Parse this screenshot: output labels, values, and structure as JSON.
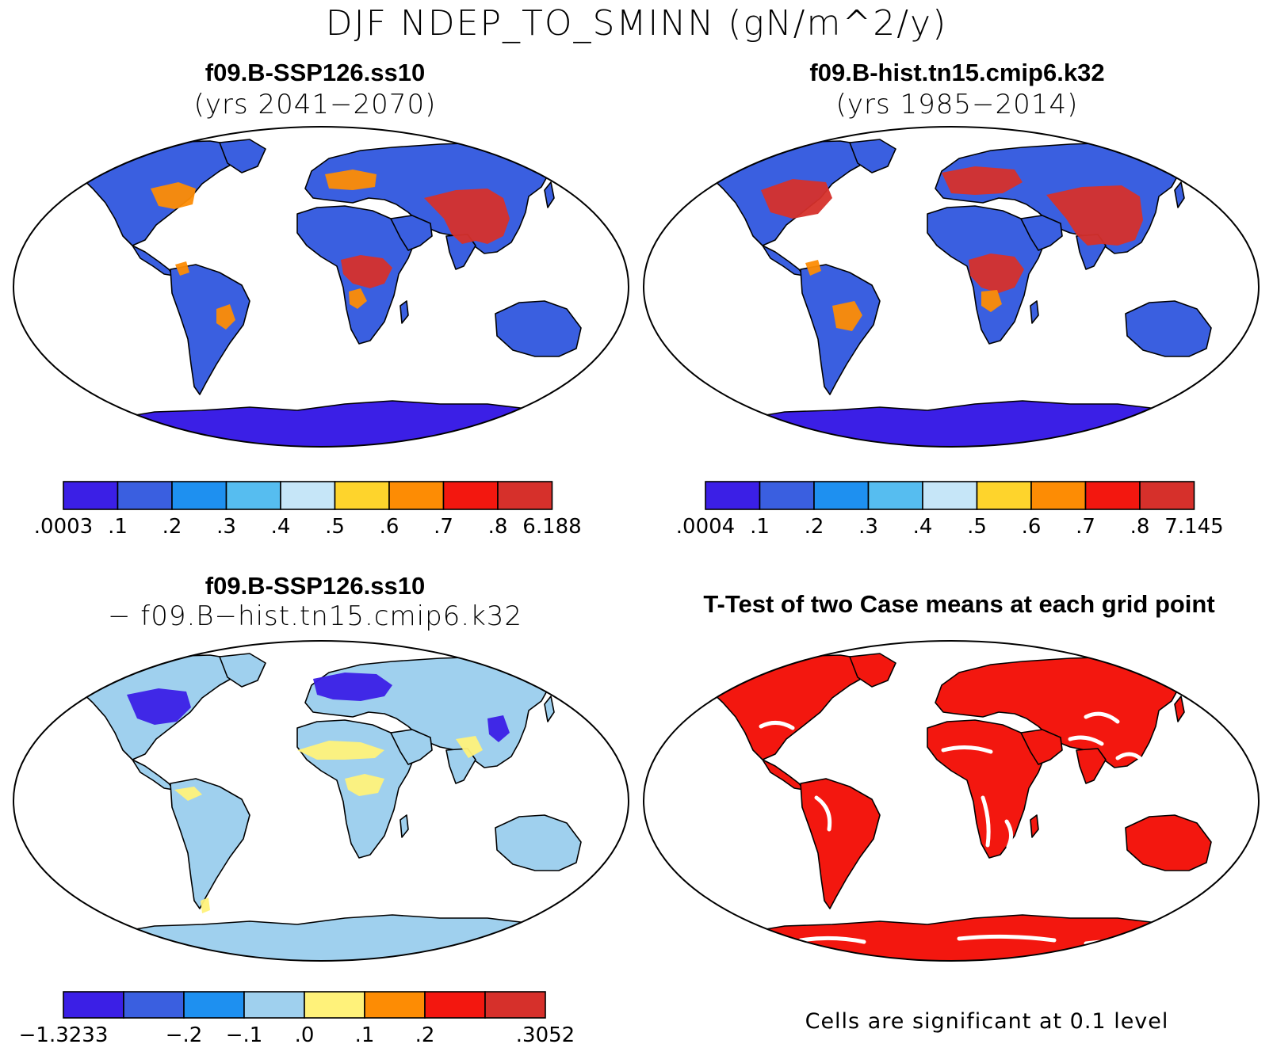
{
  "main_title": "DJF NDEP_TO_SMINN (gN/m^2/y)",
  "panels": [
    {
      "id": "top-left",
      "title_line1": "f09.B-SSP126.ss10",
      "title_line2": "(yrs 2041−2070)",
      "colors": [
        "#3b1fe6",
        "#3a5fe0",
        "#1e90f0",
        "#56bdf0",
        "#c6e6f8",
        "#fed42c",
        "#fd8c04",
        "#f3170f",
        "#d6302b"
      ],
      "labels": [
        ".0003",
        ".1",
        ".2",
        ".3",
        ".4",
        ".5",
        ".6",
        ".7",
        ".8",
        "6.188"
      ],
      "land_color": "#3a5fe0",
      "antarctica_color": "#3b1fe6",
      "hotspot_color": "#d6302b",
      "warm_color": "#fd8c04"
    },
    {
      "id": "top-right",
      "title_line1": "f09.B-hist.tn15.cmip6.k32",
      "title_line2": "(yrs 1985−2014)",
      "colors": [
        "#3b1fe6",
        "#3a5fe0",
        "#1e90f0",
        "#56bdf0",
        "#c6e6f8",
        "#fed42c",
        "#fd8c04",
        "#f3170f",
        "#d6302b"
      ],
      "labels": [
        ".0004",
        ".1",
        ".2",
        ".3",
        ".4",
        ".5",
        ".6",
        ".7",
        ".8",
        "7.145"
      ],
      "land_color": "#3a5fe0",
      "antarctica_color": "#3b1fe6",
      "hotspot_color": "#d6302b",
      "warm_color": "#fd8c04"
    },
    {
      "id": "bottom-left",
      "title_line1": "f09.B-SSP126.ss10",
      "title_line2": "− f09.B−hist.tn15.cmip6.k32",
      "colors": [
        "#3b1fe6",
        "#3a5fe0",
        "#1e90f0",
        "#9fd0ee",
        "#fff27a",
        "#fd8c04",
        "#f3170f",
        "#d6302b"
      ],
      "labels": [
        "−1.3233",
        "",
        "−.2",
        "−.1",
        ".0",
        ".1",
        ".2",
        "",
        ".3052"
      ],
      "land_color": "#9fd0ee",
      "antarctica_color": "#9fd0ee",
      "hotspot_color": "#3b1fe6",
      "warm_color": "#fff27a"
    },
    {
      "id": "bottom-right",
      "title_line1": "T-Test of two Case means at each grid point",
      "footer": "Cells are significant at 0.1 level",
      "land_color": "#f3170f",
      "antarctica_color": "#f3170f"
    }
  ]
}
